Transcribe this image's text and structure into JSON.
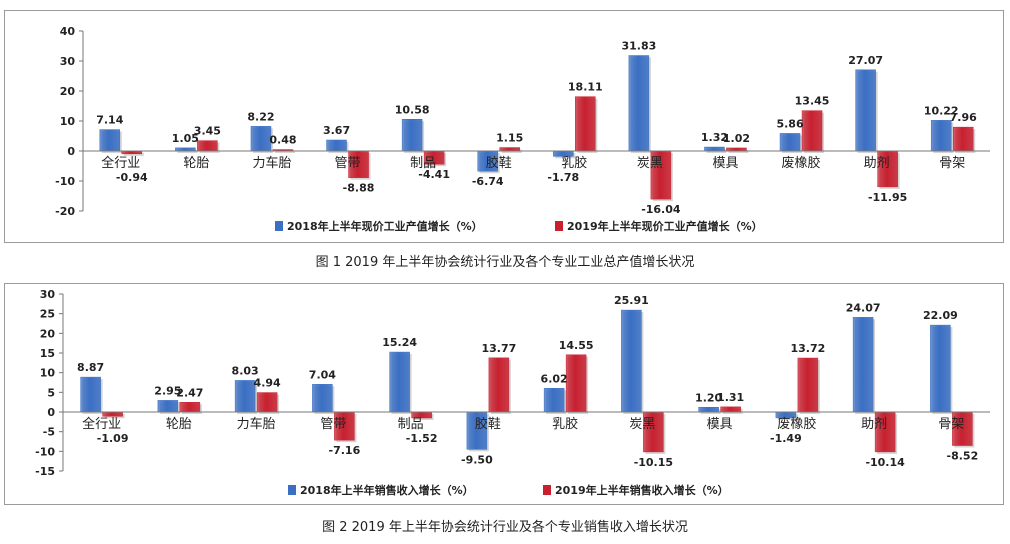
{
  "charts": [
    {
      "caption": "图 1  2019 年上半年协会统计行业及各个专业工业总产值增长状况",
      "colors": {
        "blue": "#3a6fc4",
        "red": "#c8202f"
      },
      "chart_data": {
        "type": "bar",
        "categories": [
          "全行业",
          "轮胎",
          "力车胎",
          "管带",
          "制品",
          "胶鞋",
          "乳胶",
          "炭黑",
          "模具",
          "废橡胶",
          "助剂",
          "骨架"
        ],
        "series": [
          {
            "name": "2018年上半年现价工业产值增长（%）",
            "values": [
              7.14,
              1.05,
              8.22,
              3.67,
              10.58,
              -6.74,
              -1.78,
              31.83,
              1.32,
              5.86,
              27.07,
              10.22
            ]
          },
          {
            "name": "2019年上半年现价工业产值增长（%）",
            "values": [
              -0.94,
              3.45,
              0.48,
              -8.88,
              -4.41,
              1.15,
              18.11,
              -16.04,
              1.02,
              13.45,
              -11.95,
              7.96
            ]
          }
        ],
        "labels": [
          [
            "7.14",
            "1.05",
            "8.22",
            "3.67",
            "10.58",
            "-6.74",
            "-1.78",
            "31.83",
            "1.32",
            "5.86",
            "27.07",
            "10.22"
          ],
          [
            "-0.94",
            "3.45",
            "0.48",
            "-8.88",
            "-4.41",
            "1.15",
            "18.11",
            "-16.04",
            "1.02",
            "13.45",
            "-11.95",
            "7.96"
          ]
        ],
        "ylim": [
          -20,
          40
        ],
        "yticks": [
          -20,
          -10,
          0,
          10,
          20,
          30,
          40
        ],
        "legend": "bottom",
        "grid": false
      }
    },
    {
      "caption": "图 2  2019 年上半年协会统计行业及各个专业销售收入增长状况",
      "colors": {
        "blue": "#3a6fc4",
        "red": "#c8202f"
      },
      "chart_data": {
        "type": "bar",
        "categories": [
          "全行业",
          "轮胎",
          "力车胎",
          "管带",
          "制品",
          "胶鞋",
          "乳胶",
          "炭黑",
          "模具",
          "废橡胶",
          "助剂",
          "骨架"
        ],
        "series": [
          {
            "name": "2018年上半年销售收入增长（%）",
            "values": [
              8.87,
              2.95,
              8.03,
              7.04,
              15.24,
              -9.5,
              6.02,
              25.91,
              1.2,
              -1.49,
              24.07,
              22.09
            ]
          },
          {
            "name": "2019年上半年销售收入增长（%）",
            "values": [
              -1.09,
              2.47,
              4.94,
              -7.16,
              -1.52,
              13.77,
              14.55,
              -10.15,
              1.31,
              13.72,
              -10.14,
              -8.52
            ]
          }
        ],
        "labels": [
          [
            "8.87",
            "2.95",
            "8.03",
            "7.04",
            "15.24",
            "-9.50",
            "6.02",
            "25.91",
            "1.20",
            "-1.49",
            "24.07",
            "22.09"
          ],
          [
            "-1.09",
            "2.47",
            "4.94",
            "-7.16",
            "-1.52",
            "13.77",
            "14.55",
            "-10.15",
            "1.31",
            "13.72",
            "-10.14",
            "-8.52"
          ]
        ],
        "ylim": [
          -15,
          30
        ],
        "yticks": [
          -15,
          -10,
          -5,
          0,
          5,
          10,
          15,
          20,
          25,
          30
        ],
        "legend": "bottom",
        "grid": false
      }
    }
  ]
}
